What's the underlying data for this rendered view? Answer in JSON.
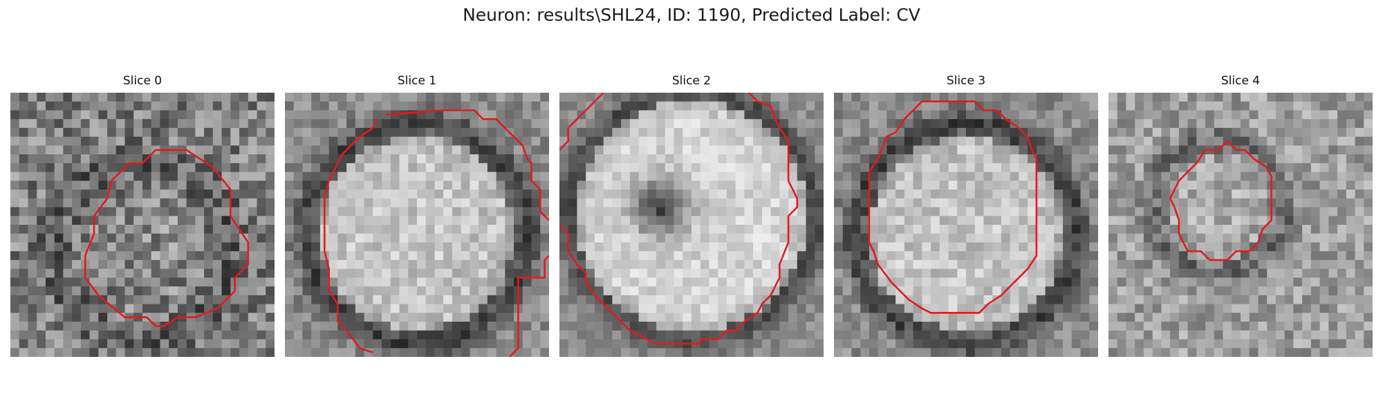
{
  "figure": {
    "title": "Neuron: results\\SHL24, ID: 1190, Predicted Label: CV"
  },
  "contour_color": "#e41a1c",
  "panels": [
    {
      "title": "Slice 0",
      "pattern": "noisy"
    },
    {
      "title": "Slice 1",
      "pattern": "bright-disk"
    },
    {
      "title": "Slice 2",
      "pattern": "ring-dark-center"
    },
    {
      "title": "Slice 3",
      "pattern": "bright-disk"
    },
    {
      "title": "Slice 4",
      "pattern": "faint-ring"
    }
  ]
}
